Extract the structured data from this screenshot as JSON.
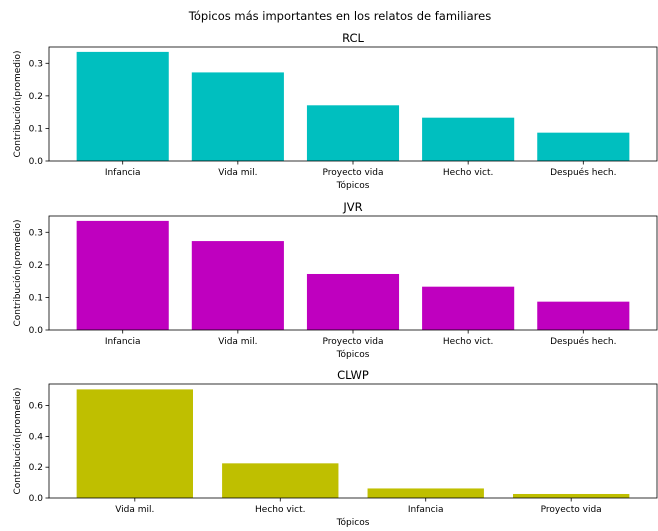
{
  "figure": {
    "suptitle": "Tópicos más importantes en los relatos de familiares"
  },
  "chart_data": [
    {
      "type": "bar",
      "title": "RCL",
      "categories": [
        "Infancia",
        "Vida mil.",
        "Proyecto vida",
        "Hecho vict.",
        "Después hech."
      ],
      "values": [
        0.335,
        0.272,
        0.171,
        0.133,
        0.087
      ],
      "xlabel": "Tópicos",
      "ylabel": "Contribución(promedio)",
      "ylim": [
        0,
        0.35
      ],
      "yticks": [
        "0.0",
        "0.1",
        "0.2",
        "0.3"
      ],
      "color": "#00bfbf",
      "grid": false,
      "legend": null
    },
    {
      "type": "bar",
      "title": "JVR",
      "categories": [
        "Infancia",
        "Vida mil.",
        "Proyecto vida",
        "Hecho vict.",
        "Después hech."
      ],
      "values": [
        0.335,
        0.273,
        0.172,
        0.133,
        0.087
      ],
      "xlabel": "Tópicos",
      "ylabel": "Contribución(promedio)",
      "ylim": [
        0,
        0.35
      ],
      "yticks": [
        "0.0",
        "0.1",
        "0.2",
        "0.3"
      ],
      "color": "#bf00bf",
      "grid": false,
      "legend": null
    },
    {
      "type": "bar",
      "title": "CLWP",
      "categories": [
        "Vida mil.",
        "Hecho vict.",
        "Infancia",
        "Proyecto vida"
      ],
      "values": [
        0.705,
        0.225,
        0.062,
        0.026
      ],
      "xlabel": "Tópicos",
      "ylabel": "Contribución(promedio)",
      "ylim": [
        0,
        0.74
      ],
      "yticks": [
        "0.0",
        "0.2",
        "0.4",
        "0.6"
      ],
      "color": "#bfbf00",
      "grid": false,
      "legend": null
    }
  ]
}
